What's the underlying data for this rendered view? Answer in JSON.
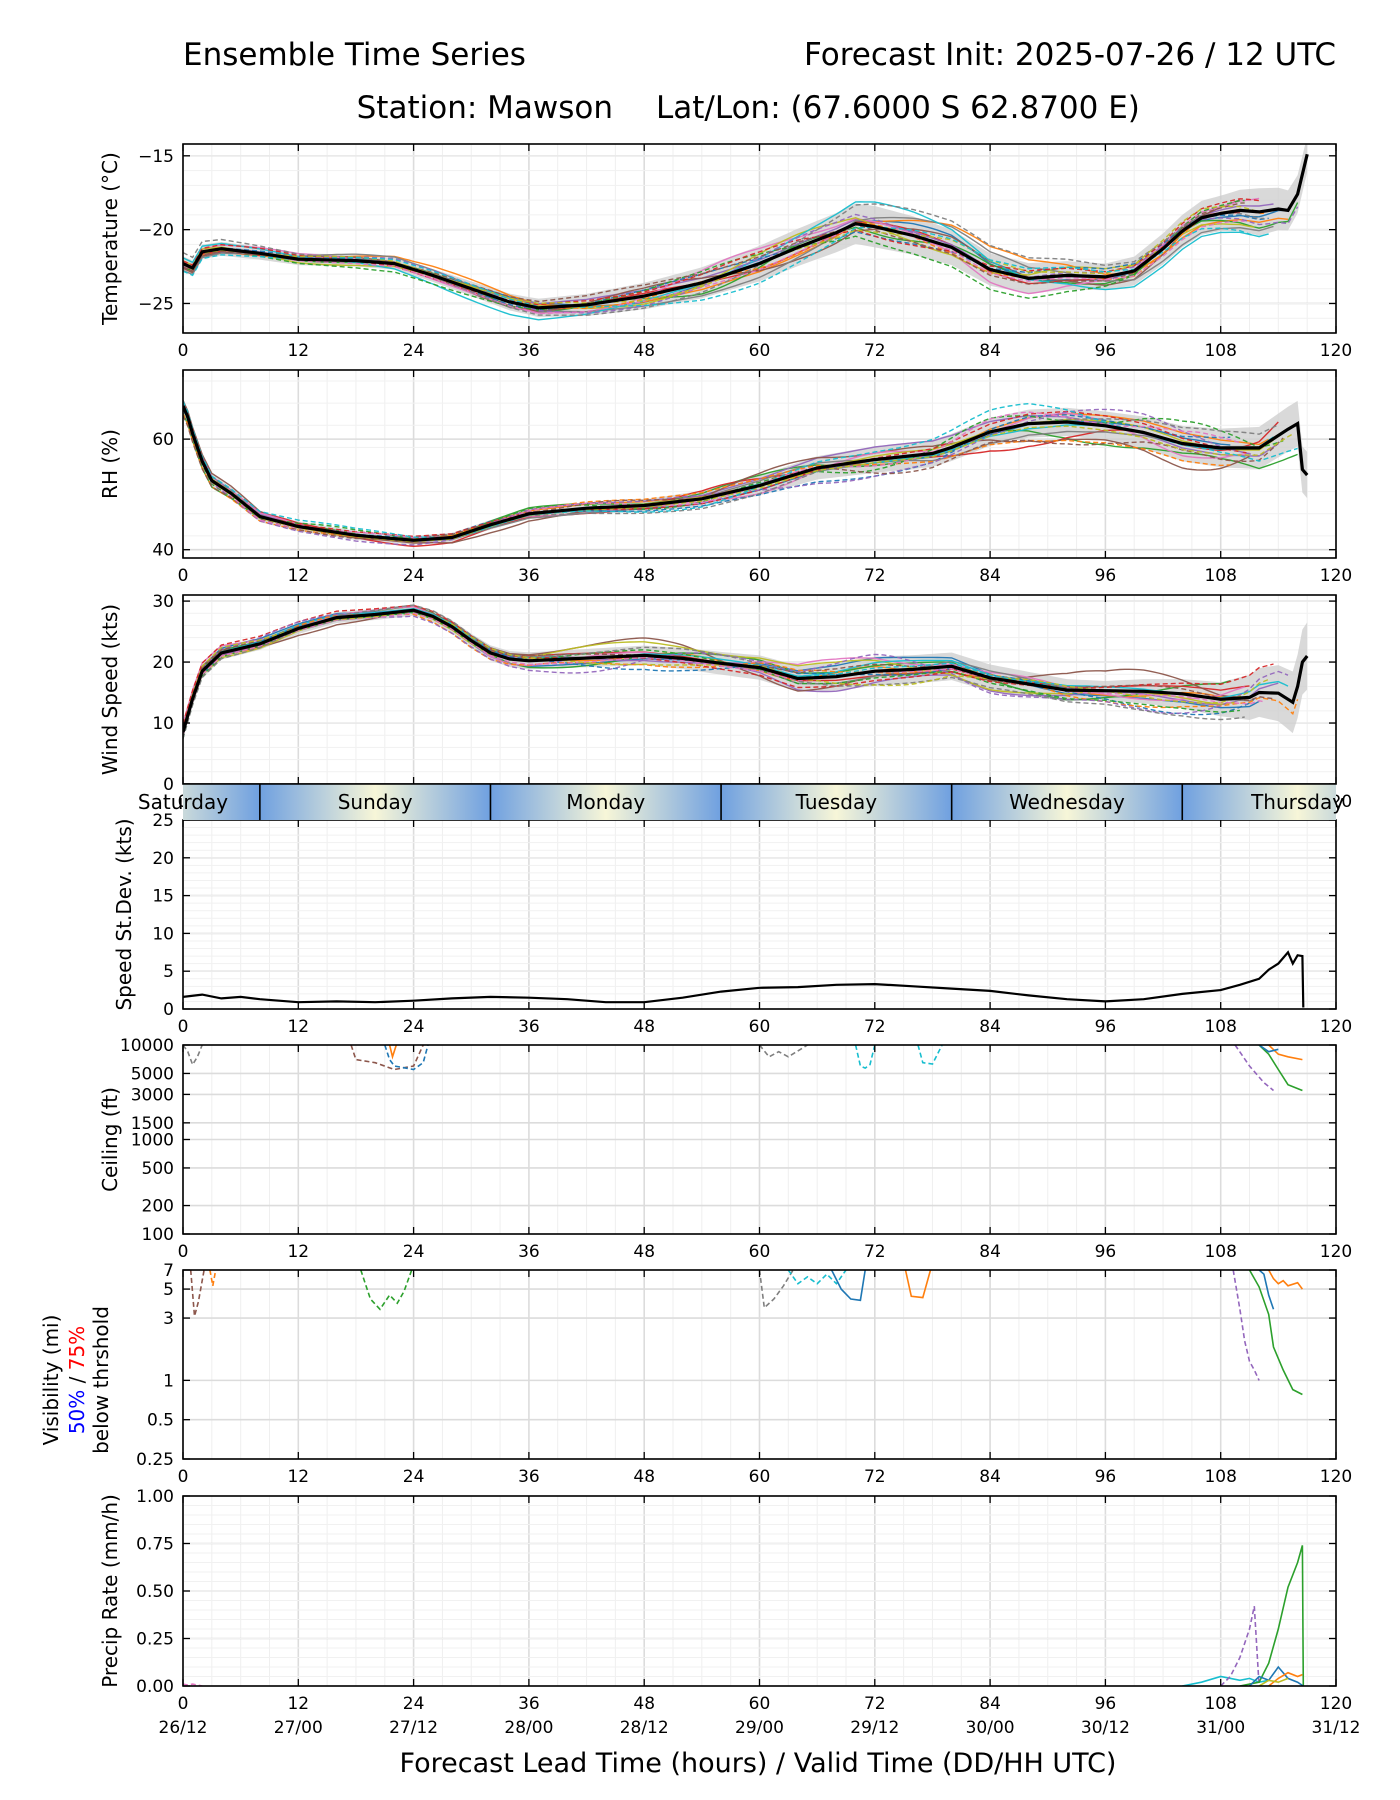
{
  "header": {
    "title_left": "Ensemble Time Series",
    "title_right": "Forecast Init: 2025-07-26 / 12 UTC",
    "station": "Station: Mawson",
    "latlon": "Lat/Lon: (67.6000 S 62.8700 E)"
  },
  "footer": {
    "xlabel": "Forecast Lead Time (hours) / Valid Time (DD/HH UTC)",
    "valid_times": [
      "26/12",
      "27/00",
      "27/12",
      "28/00",
      "28/12",
      "29/00",
      "29/12",
      "30/00",
      "30/12",
      "31/00",
      "31/12"
    ]
  },
  "day_strip": {
    "days": [
      {
        "label": "Saturday",
        "hour": 0
      },
      {
        "label": "Sunday",
        "hour": 20
      },
      {
        "label": "Monday",
        "hour": 44
      },
      {
        "label": "Tuesday",
        "hour": 68
      },
      {
        "label": "Wednesday",
        "hour": 92
      },
      {
        "label": "Thursday",
        "hour": 116
      }
    ],
    "day_boundaries_hours": [
      8,
      32,
      56,
      80,
      104
    ],
    "color_edge": "#6fa0e0",
    "color_mid": "#f7f6d8"
  },
  "visibility_label": {
    "line1": "Visibility (mi)",
    "pct50": "50%",
    "sep": " / ",
    "pct75": "75%",
    "line3": "below thrshold",
    "color50": "#0000ff",
    "color75": "#ff0000"
  },
  "colors": {
    "members": [
      "#1f77b4",
      "#ff7f0e",
      "#2ca02c",
      "#d62728",
      "#9467bd",
      "#8c564b",
      "#e377c2",
      "#7f7f7f",
      "#bcbd22",
      "#17becf"
    ],
    "mean": "#000000",
    "spread": "#cccccc"
  },
  "chart_data": [
    {
      "type": "line",
      "ylabel": "Temperature (°C)",
      "xlim": [
        0,
        120
      ],
      "ylim": [
        -27,
        -14.2
      ],
      "yticks": [
        -25,
        -20,
        -15
      ],
      "xticks": [
        0,
        12,
        24,
        36,
        48,
        60,
        72,
        84,
        96,
        108,
        120
      ],
      "members": 20,
      "mean": {
        "x": [
          0,
          1,
          2,
          4,
          8,
          12,
          18,
          22,
          26,
          30,
          34,
          37,
          42,
          48,
          54,
          60,
          64,
          68,
          70,
          72,
          76,
          80,
          84,
          88,
          92,
          96,
          99,
          102,
          104,
          106,
          108,
          110,
          112,
          114,
          115,
          116,
          117
        ],
        "y": [
          -22.3,
          -22.6,
          -21.5,
          -21.3,
          -21.6,
          -22.0,
          -22.1,
          -22.3,
          -23.1,
          -24.0,
          -24.9,
          -25.3,
          -25.1,
          -24.5,
          -23.6,
          -22.3,
          -21.2,
          -20.2,
          -19.6,
          -19.8,
          -20.4,
          -21.2,
          -22.7,
          -23.3,
          -23.1,
          -23.2,
          -22.8,
          -21.3,
          -20.1,
          -19.2,
          -18.9,
          -18.7,
          -18.8,
          -18.6,
          -18.7,
          -17.6,
          -14.9
        ]
      },
      "spread_halfwidth": {
        "x": [
          0,
          12,
          24,
          36,
          48,
          60,
          72,
          84,
          96,
          108,
          112,
          117
        ],
        "y": [
          0.5,
          0.4,
          0.4,
          0.6,
          0.9,
          1.2,
          1.4,
          1.1,
          0.9,
          1.2,
          1.6,
          1.2
        ]
      },
      "spread_member_scale": 2.2
    },
    {
      "type": "line",
      "ylabel": "RH (%)",
      "xlim": [
        0,
        120
      ],
      "ylim": [
        38.5,
        72.5
      ],
      "yticks": [
        40,
        60
      ],
      "xticks": [
        0,
        12,
        24,
        36,
        48,
        60,
        72,
        84,
        96,
        108,
        120
      ],
      "members": 20,
      "mean": {
        "x": [
          0,
          0.5,
          1,
          2,
          3,
          5,
          8,
          12,
          18,
          24,
          28,
          32,
          36,
          42,
          48,
          54,
          60,
          66,
          72,
          78,
          80,
          84,
          88,
          92,
          96,
          100,
          104,
          108,
          112,
          115,
          116,
          116.5,
          117
        ],
        "y": [
          66,
          64,
          61,
          56,
          52.5,
          50.2,
          46,
          44.2,
          42.6,
          41.7,
          42.2,
          44.5,
          46.5,
          47.5,
          48,
          49.2,
          51.6,
          54.8,
          56.3,
          57.4,
          58.5,
          61.3,
          62.8,
          63.1,
          62.4,
          61.2,
          59.2,
          58.4,
          58.4,
          61.8,
          62.8,
          54.5,
          53.5
        ]
      },
      "spread_halfwidth": {
        "x": [
          0,
          12,
          24,
          36,
          48,
          60,
          72,
          84,
          96,
          108,
          117
        ],
        "y": [
          1.2,
          0.9,
          0.8,
          0.9,
          1.1,
          1.8,
          2.4,
          2.5,
          2.6,
          3.5,
          4.2
        ]
      },
      "spread_member_scale": 2.2
    },
    {
      "type": "line",
      "ylabel": "Wind Speed (kts)",
      "xlim": [
        0,
        120
      ],
      "ylim": [
        0,
        31
      ],
      "yticks": [
        0,
        10,
        20,
        30
      ],
      "xticks": [
        0,
        12,
        24,
        36,
        48,
        60,
        72,
        84,
        96,
        108,
        120
      ],
      "members": 20,
      "mean": {
        "x": [
          0,
          1,
          2,
          4,
          8,
          12,
          16,
          20,
          24,
          26,
          28,
          30,
          32,
          34,
          36,
          40,
          44,
          48,
          52,
          56,
          60,
          64,
          68,
          72,
          76,
          80,
          84,
          88,
          92,
          96,
          100,
          104,
          108,
          111,
          112,
          114,
          115.5,
          116,
          116.5,
          117
        ],
        "y": [
          8.5,
          14,
          18.5,
          21.5,
          23,
          25.5,
          27.3,
          27.8,
          28.5,
          27.5,
          25.8,
          23.5,
          21.5,
          20.5,
          20.2,
          20.5,
          20.8,
          21.1,
          20.6,
          19.8,
          19.1,
          17.3,
          17.6,
          18.5,
          18.8,
          19.3,
          17.4,
          16.4,
          15.4,
          15.3,
          15.2,
          14.8,
          13.9,
          14.2,
          15,
          14.9,
          13.4,
          16,
          20,
          21
        ]
      },
      "spread_halfwidth": {
        "x": [
          0,
          12,
          24,
          36,
          48,
          60,
          72,
          84,
          96,
          108,
          117
        ],
        "y": [
          1.2,
          0.9,
          0.9,
          1.4,
          1.6,
          2.0,
          2.4,
          2.2,
          1.6,
          2.8,
          5.5
        ]
      },
      "spread_member_scale": 2.2
    },
    {
      "type": "line",
      "ylabel": "Speed St.Dev. (kts)",
      "xlim": [
        0,
        120
      ],
      "ylim": [
        0,
        25
      ],
      "yticks": [
        0,
        5,
        10,
        15,
        20,
        25
      ],
      "xticks": [
        0,
        12,
        24,
        36,
        48,
        60,
        72,
        84,
        96,
        108,
        120
      ],
      "series": [
        {
          "x": [
            0,
            2,
            4,
            6,
            8,
            10,
            12,
            16,
            20,
            24,
            28,
            32,
            36,
            40,
            44,
            48,
            52,
            56,
            60,
            64,
            68,
            72,
            76,
            80,
            84,
            88,
            92,
            96,
            100,
            104,
            108,
            110,
            112,
            113,
            114,
            115,
            115.5,
            116,
            116.5,
            116.6
          ],
          "y": [
            1.6,
            1.9,
            1.4,
            1.6,
            1.3,
            1.1,
            0.9,
            1.0,
            0.9,
            1.1,
            1.4,
            1.6,
            1.5,
            1.3,
            0.9,
            0.9,
            1.5,
            2.3,
            2.8,
            2.9,
            3.2,
            3.3,
            3.0,
            2.7,
            2.4,
            1.8,
            1.3,
            1.0,
            1.3,
            2.0,
            2.5,
            3.2,
            4.0,
            5.2,
            6.0,
            7.5,
            6.0,
            7.1,
            7.0,
            0.2
          ]
        }
      ]
    },
    {
      "type": "line",
      "ylabel": "Ceiling (ft)",
      "scale": "log",
      "xlim": [
        0,
        120
      ],
      "ylim": [
        100,
        10000
      ],
      "yticks": [
        100,
        200,
        500,
        1000,
        1500,
        3000,
        5000,
        10000
      ],
      "xticks": [
        0,
        12,
        24,
        36,
        48,
        60,
        72,
        84,
        96,
        108,
        120
      ],
      "series": [
        {
          "x": [
            0,
            0.5,
            1,
            1.5,
            2
          ],
          "y": [
            10000,
            8500,
            6200,
            7500,
            10000
          ],
          "color": "#7f7f7f",
          "dash": true
        },
        {
          "x": [
            17.5,
            18,
            20,
            22,
            24,
            25
          ],
          "y": [
            10000,
            7000,
            6500,
            5500,
            6000,
            10000
          ],
          "color": "#8c564b",
          "dash": true
        },
        {
          "x": [
            21,
            21.5,
            22,
            24,
            25,
            25.5
          ],
          "y": [
            10000,
            7000,
            6000,
            5500,
            6500,
            10000
          ],
          "color": "#1f77b4",
          "dash": true
        },
        {
          "x": [
            21.5,
            21.8,
            22.2
          ],
          "y": [
            10000,
            7500,
            10000
          ],
          "color": "#ff7f0e",
          "dash": false
        },
        {
          "x": [
            60,
            61,
            62,
            63,
            65
          ],
          "y": [
            10000,
            7500,
            8500,
            7500,
            10000
          ],
          "color": "#7f7f7f",
          "dash": true
        },
        {
          "x": [
            70,
            70.5,
            71,
            71.5,
            72
          ],
          "y": [
            10000,
            6000,
            5700,
            6200,
            10000
          ],
          "color": "#17becf",
          "dash": true
        },
        {
          "x": [
            76.5,
            77,
            78,
            79
          ],
          "y": [
            10000,
            6500,
            6300,
            10000
          ],
          "color": "#17becf",
          "dash": true
        },
        {
          "x": [
            109.5,
            111,
            112.5,
            113.5
          ],
          "y": [
            10000,
            6000,
            4000,
            3300
          ],
          "color": "#9467bd",
          "dash": true
        },
        {
          "x": [
            112,
            113,
            114,
            115,
            116.5
          ],
          "y": [
            10000,
            8000,
            5500,
            3800,
            3300
          ],
          "color": "#2ca02c",
          "dash": false
        },
        {
          "x": [
            113,
            114,
            115,
            116.5
          ],
          "y": [
            10000,
            8000,
            7500,
            7000
          ],
          "color": "#ff7f0e",
          "dash": false
        },
        {
          "x": [
            112,
            113,
            114
          ],
          "y": [
            10000,
            8500,
            9000
          ],
          "color": "#1f77b4",
          "dash": false
        }
      ]
    },
    {
      "type": "line",
      "ylabel": "Visibility (mi) 50% / 75% below thrshold",
      "scale": "log",
      "xlim": [
        0,
        120
      ],
      "ylim": [
        0.25,
        7
      ],
      "yticks": [
        0.25,
        0.5,
        1,
        3,
        5,
        7
      ],
      "xticks": [
        0,
        12,
        24,
        36,
        48,
        60,
        72,
        84,
        96,
        108,
        120
      ],
      "series": [
        {
          "x": [
            0.8,
            1.2,
            1.6,
            2.2
          ],
          "y": [
            7,
            3.1,
            4.0,
            7
          ],
          "color": "#8c564b",
          "dash": true
        },
        {
          "x": [
            2.8,
            3.1,
            3.4
          ],
          "y": [
            7,
            5.3,
            7
          ],
          "color": "#ff7f0e",
          "dash": true
        },
        {
          "x": [
            18.5,
            19.5,
            20.5,
            21.5,
            22.3,
            23,
            23.8
          ],
          "y": [
            7,
            4.2,
            3.5,
            4.5,
            3.9,
            4.8,
            7
          ],
          "color": "#2ca02c",
          "dash": true
        },
        {
          "x": [
            60,
            60.5,
            61.5,
            62.5,
            63.5
          ],
          "y": [
            7,
            3.6,
            4.2,
            5.3,
            7
          ],
          "color": "#7f7f7f",
          "dash": true
        },
        {
          "x": [
            63,
            64,
            65,
            66,
            67,
            68,
            69
          ],
          "y": [
            7,
            5.5,
            6.2,
            5.5,
            6.5,
            5.5,
            7
          ],
          "color": "#17becf",
          "dash": true
        },
        {
          "x": [
            67.5,
            68.5,
            69.5,
            70.5,
            71
          ],
          "y": [
            7,
            5.0,
            4.2,
            4.1,
            7
          ],
          "color": "#1f77b4",
          "dash": false
        },
        {
          "x": [
            75.2,
            75.8,
            77,
            77.8
          ],
          "y": [
            7,
            4.4,
            4.3,
            7
          ],
          "color": "#ff7f0e",
          "dash": false
        },
        {
          "x": [
            109.3,
            110,
            110.5,
            111,
            111.5,
            112
          ],
          "y": [
            7,
            3.5,
            2.0,
            1.4,
            1.2,
            1.0
          ],
          "color": "#9467bd",
          "dash": true
        },
        {
          "x": [
            111,
            112,
            113,
            113.5,
            114.5,
            115.5,
            116.5
          ],
          "y": [
            7,
            5.2,
            3.2,
            1.8,
            1.2,
            0.85,
            0.78
          ],
          "color": "#2ca02c",
          "dash": false
        },
        {
          "x": [
            113,
            113.5,
            114,
            114.5,
            115,
            116,
            116.5
          ],
          "y": [
            7,
            6,
            5.5,
            5.8,
            5.3,
            5.6,
            5.0
          ],
          "color": "#ff7f0e",
          "dash": false
        },
        {
          "x": [
            112,
            112.5,
            113,
            113.5
          ],
          "y": [
            7,
            6.5,
            4.5,
            3.5
          ],
          "color": "#1f77b4",
          "dash": false
        }
      ]
    },
    {
      "type": "line",
      "ylabel": "Precip Rate (mm/h)",
      "xlim": [
        0,
        120
      ],
      "ylim": [
        0,
        1.0
      ],
      "yticks": [
        0.0,
        0.25,
        0.5,
        0.75,
        1.0
      ],
      "xticks": [
        0,
        12,
        24,
        36,
        48,
        60,
        72,
        84,
        96,
        108,
        120
      ],
      "series": [
        {
          "x": [
            0,
            0.5,
            1,
            2
          ],
          "y": [
            0.01,
            0.005,
            0.01,
            0
          ],
          "color": "#e377c2",
          "dash": true
        },
        {
          "x": [
            104,
            106,
            108,
            110,
            111,
            112,
            113
          ],
          "y": [
            0,
            0.02,
            0.05,
            0.03,
            0.04,
            0.02,
            0.03
          ],
          "color": "#17becf",
          "dash": false
        },
        {
          "x": [
            108,
            109,
            110,
            111,
            111.5,
            112
          ],
          "y": [
            0,
            0.05,
            0.15,
            0.3,
            0.42,
            0.0
          ],
          "color": "#9467bd",
          "dash": true
        },
        {
          "x": [
            110,
            112,
            113,
            114,
            115,
            116,
            116.5,
            116.6
          ],
          "y": [
            0,
            0.02,
            0.12,
            0.3,
            0.52,
            0.65,
            0.74,
            0.0
          ],
          "color": "#2ca02c",
          "dash": false
        },
        {
          "x": [
            111,
            112,
            113,
            114,
            115,
            116,
            116.6
          ],
          "y": [
            0,
            0.05,
            0.03,
            0.1,
            0.04,
            0.02,
            0.0
          ],
          "color": "#1f77b4",
          "dash": false
        },
        {
          "x": [
            113,
            114,
            115,
            116,
            116.5
          ],
          "y": [
            0,
            0.04,
            0.07,
            0.05,
            0.06
          ],
          "color": "#ff7f0e",
          "dash": false
        },
        {
          "x": [
            112,
            113,
            114,
            115
          ],
          "y": [
            0,
            0.03,
            0.02,
            0.04
          ],
          "color": "#bcbd22",
          "dash": false
        }
      ]
    }
  ]
}
